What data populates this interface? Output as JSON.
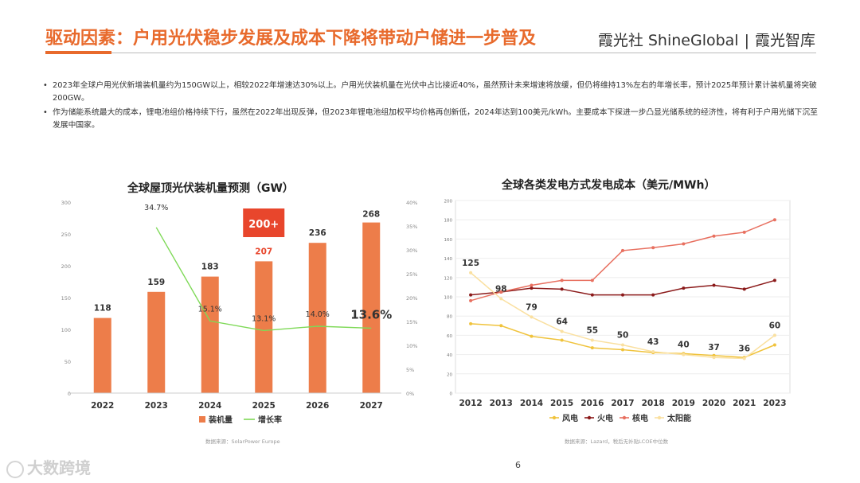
{
  "header": {
    "title": "驱动因素：户用光伏稳步发展及成本下降将带动户储进一步普及",
    "brand_left": "霞光社 ShineGlobal",
    "brand_sep": "|",
    "brand_right": "霞光智库"
  },
  "bullets": [
    "2023年全球户用光伏新增装机量约为150GW以上，相较2022年增速达30%以上。户用光伏装机量在光伏中占比接近40%，虽然预计未来增速将放缓，但仍将维持13%左右的年增长率，预计2025年预计累计装机量将突破200GW。",
    "作为储能系统最大的成本，锂电池组价格持续下行，虽然在2022年出现反弹，但2023年锂电池组加权平均价格再创新低，2024年达到100美元/kWh。主要成本下探进一步凸显光储系统的经济性，将有利于户用光储下沉至发展中国家。"
  ],
  "colors": {
    "accent": "#e86a2c",
    "bar": "#ed7d4a",
    "growth": "#7ed957"
  },
  "chart_data": [
    {
      "type": "bar",
      "title": "全球屋顶光伏装机量预测（GW）",
      "categories": [
        "2022",
        "2023",
        "2024",
        "2025",
        "2026",
        "2027"
      ],
      "series": [
        {
          "name": "装机量",
          "values": [
            118,
            159,
            183,
            207,
            236,
            268
          ],
          "labels": [
            "118",
            "159",
            "183",
            "207",
            "236",
            "268"
          ]
        },
        {
          "name": "增长率",
          "axis": "right",
          "values": [
            null,
            34.7,
            15.1,
            13.1,
            14.0,
            13.6
          ],
          "labels": [
            "",
            "34.7%",
            "15.1%",
            "13.1%",
            "14.0%",
            "13.6%"
          ]
        }
      ],
      "ylim": [
        0,
        300
      ],
      "yticks": [
        "0",
        "50",
        "100",
        "150",
        "200",
        "250",
        "300"
      ],
      "y2lim": [
        0,
        40
      ],
      "y2ticks": [
        "0%",
        "5%",
        "10%",
        "15%",
        "20%",
        "25%",
        "30%",
        "35%",
        "40%"
      ],
      "annotation": "200+",
      "source": "数据来源：SolarPower Europe"
    },
    {
      "type": "line",
      "title": "全球各类发电方式发电成本（美元/MWh）",
      "categories": [
        "2012",
        "2013",
        "2014",
        "2015",
        "2016",
        "2017",
        "2018",
        "2019",
        "2020",
        "2021",
        "2023"
      ],
      "series": [
        {
          "name": "风电",
          "color": "#f0c33c",
          "values": [
            72,
            70,
            59,
            55,
            47,
            45,
            42,
            41,
            39,
            37,
            50
          ]
        },
        {
          "name": "火电",
          "color": "#8b1a1a",
          "values": [
            102,
            105,
            109,
            108,
            102,
            102,
            102,
            109,
            112,
            108,
            117
          ]
        },
        {
          "name": "核电",
          "color": "#e87060",
          "values": [
            96,
            105,
            112,
            117,
            117,
            148,
            151,
            155,
            163,
            167,
            180
          ]
        },
        {
          "name": "太阳能",
          "color": "#fae0a0",
          "values": [
            125,
            98,
            79,
            64,
            55,
            50,
            43,
            40,
            37,
            36,
            60
          ]
        }
      ],
      "labels": [
        "125",
        "98",
        "79",
        "64",
        "55",
        "50",
        "43",
        "40",
        "37",
        "36",
        "60"
      ],
      "ylim": [
        0,
        200
      ],
      "yticks": [
        "0",
        "20",
        "40",
        "60",
        "80",
        "100",
        "120",
        "140",
        "160",
        "180",
        "200"
      ],
      "source": "数据来源：Lazard，税后无补贴LCOE中位数"
    }
  ],
  "footer": {
    "page": "6",
    "watermark": "大数跨境"
  }
}
